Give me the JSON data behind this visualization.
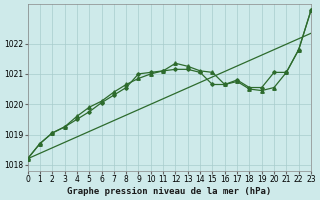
{
  "title": "Graphe pression niveau de la mer (hPa)",
  "bg_color": "#ceeaea",
  "grid_color": "#a8cccc",
  "line_color": "#2d6b2d",
  "xlim": [
    0,
    23
  ],
  "ylim": [
    1017.8,
    1023.3
  ],
  "yticks": [
    1018,
    1019,
    1020,
    1021,
    1022
  ],
  "xticks": [
    0,
    1,
    2,
    3,
    4,
    5,
    6,
    7,
    8,
    9,
    10,
    11,
    12,
    13,
    14,
    15,
    16,
    17,
    18,
    19,
    20,
    21,
    22,
    23
  ],
  "series_straight": [
    1018.2,
    1018.38,
    1018.56,
    1018.74,
    1018.92,
    1019.1,
    1019.28,
    1019.46,
    1019.64,
    1019.82,
    1020.0,
    1020.18,
    1020.36,
    1020.54,
    1020.72,
    1020.9,
    1021.08,
    1021.26,
    1021.44,
    1021.62,
    1021.8,
    1021.98,
    1022.16,
    1022.34
  ],
  "series_triangle": [
    1018.2,
    1018.7,
    1019.05,
    1019.25,
    1019.6,
    1019.9,
    1020.1,
    1020.4,
    1020.65,
    1020.85,
    1021.0,
    1021.1,
    1021.35,
    1021.25,
    1021.1,
    1021.05,
    1020.65,
    1020.75,
    1020.5,
    1020.45,
    1020.55,
    1021.05,
    1021.8,
    1023.1
  ],
  "series_diamond": [
    1018.2,
    1018.7,
    1019.05,
    1019.25,
    1019.5,
    1019.75,
    1020.05,
    1020.3,
    1020.55,
    1021.0,
    1021.05,
    1021.1,
    1021.15,
    1021.15,
    1021.05,
    1020.65,
    1020.65,
    1020.8,
    1020.55,
    1020.55,
    1021.05,
    1021.05,
    1021.8,
    1023.1
  ],
  "title_fontsize": 6.5,
  "tick_fontsize": 5.5
}
